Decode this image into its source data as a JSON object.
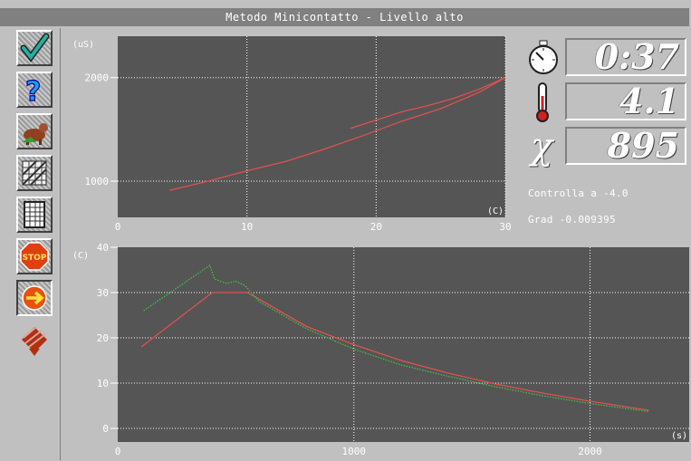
{
  "window": {
    "title": "Metodo Minicontatto - Livello alto"
  },
  "toolbar": {
    "items": [
      {
        "icon": "checkmark-icon"
      },
      {
        "icon": "help-icon"
      },
      {
        "icon": "cow-icon"
      },
      {
        "icon": "hatched-grid-icon"
      },
      {
        "icon": "table-icon"
      },
      {
        "icon": "stop-icon"
      },
      {
        "icon": "next-arrow-icon"
      },
      {
        "icon": "pattern-icon"
      }
    ]
  },
  "readouts": {
    "time": {
      "icon": "stopwatch-icon",
      "value": "0:37"
    },
    "temperature": {
      "icon": "thermometer-icon",
      "value": "4.1"
    },
    "chi": {
      "icon": "chi-symbol",
      "symbol": "χ",
      "value": "895"
    }
  },
  "info": {
    "control": "Controlla a -4.0",
    "gradient": "Grad -0.009395"
  },
  "colors": {
    "plot_bg": "#555555",
    "red_series": "#e05050",
    "green_series": "#40c040",
    "grid": "#ffffff"
  },
  "chart_data": [
    {
      "type": "line",
      "title": "",
      "xlabel": "(C)",
      "ylabel": "(uS)",
      "xlim": [
        0,
        30
      ],
      "ylim": [
        650,
        2400
      ],
      "xticks": [
        0,
        10,
        20,
        30
      ],
      "xtick_labels": [
        "0",
        "10",
        "20",
        "30"
      ],
      "yticks": [
        1000,
        2000
      ],
      "ytick_labels": [
        "1000",
        "2000"
      ],
      "grid": true,
      "series": [
        {
          "color": "red",
          "x": [
            4,
            7,
            10,
            13,
            16,
            19,
            22,
            25,
            28,
            30
          ],
          "y": [
            910,
            1000,
            1100,
            1190,
            1310,
            1440,
            1580,
            1700,
            1860,
            2000
          ]
        },
        {
          "color": "red",
          "x": [
            18,
            20,
            22,
            24,
            26,
            28,
            30
          ],
          "y": [
            1510,
            1590,
            1670,
            1730,
            1800,
            1890,
            2000
          ]
        }
      ]
    },
    {
      "type": "line",
      "title": "",
      "xlabel": "(s)",
      "ylabel": "(C)",
      "xlim": [
        0,
        2420
      ],
      "ylim": [
        -3,
        40
      ],
      "xticks": [
        0,
        1000,
        2000
      ],
      "xtick_labels": [
        "0",
        "1000",
        "2000"
      ],
      "yticks": [
        0,
        10,
        20,
        30,
        40
      ],
      "ytick_labels": [
        "0",
        "10",
        "20",
        "30",
        "40"
      ],
      "grid": true,
      "series": [
        {
          "color": "red",
          "x": [
            100,
            400,
            550,
            800,
            1000,
            1200,
            1400,
            1600,
            1800,
            2000,
            2250
          ],
          "y": [
            18,
            30,
            30,
            22.5,
            18.5,
            15,
            12.2,
            9.8,
            7.8,
            6,
            4
          ]
        },
        {
          "color": "green",
          "x": [
            110,
            390,
            410,
            460,
            500,
            540,
            600,
            800,
            1000,
            1200,
            1400,
            1600,
            1800,
            2000,
            2250
          ],
          "y": [
            26,
            36,
            33,
            32,
            32.5,
            31.5,
            28,
            22,
            17.5,
            14,
            11.5,
            9.2,
            7.2,
            5.5,
            3.7
          ]
        }
      ]
    }
  ]
}
